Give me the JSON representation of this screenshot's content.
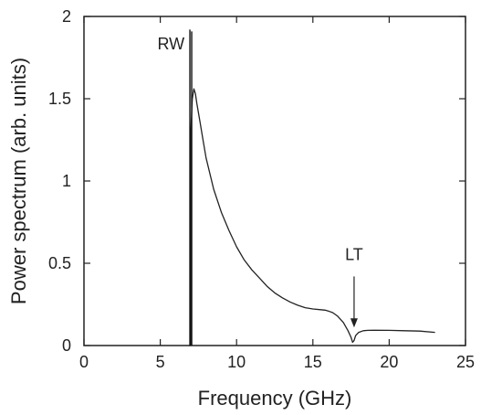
{
  "chart_data": {
    "type": "line",
    "title": "",
    "xlabel": "Frequency (GHz)",
    "ylabel": "Power spectrum (arb. units)",
    "xlim": [
      0,
      25
    ],
    "ylim": [
      0,
      2
    ],
    "x_ticks": [
      0,
      5,
      10,
      15,
      20,
      25
    ],
    "y_ticks": [
      0,
      0.5,
      1,
      1.5,
      2
    ],
    "y_tick_labels": [
      "0",
      "0.5",
      "1",
      "1.5",
      "2"
    ],
    "grid": false,
    "legend": "none",
    "series": [
      {
        "x": [
          6.9,
          7.0,
          7.0,
          7.05,
          7.1,
          7.2,
          7.3,
          7.4,
          7.6,
          7.8,
          8.0,
          8.5,
          9.0,
          9.5,
          10.0,
          10.5,
          11.0,
          11.5,
          12.0,
          12.5,
          13.0,
          13.5,
          14.0,
          14.5,
          15.0,
          15.5,
          15.8,
          16.0,
          16.3,
          16.6,
          17.0,
          17.3,
          17.5,
          17.6,
          17.7,
          17.8,
          18.0,
          18.3,
          18.6,
          19.0,
          20.0,
          21.0,
          22.0,
          23.0
        ],
        "y": [
          0.0,
          0.0,
          1.3,
          1.4,
          1.5,
          1.56,
          1.53,
          1.47,
          1.36,
          1.25,
          1.14,
          0.95,
          0.81,
          0.7,
          0.6,
          0.52,
          0.46,
          0.41,
          0.36,
          0.32,
          0.29,
          0.265,
          0.245,
          0.23,
          0.222,
          0.218,
          0.215,
          0.21,
          0.2,
          0.18,
          0.14,
          0.09,
          0.05,
          0.02,
          0.03,
          0.06,
          0.08,
          0.09,
          0.092,
          0.093,
          0.092,
          0.09,
          0.088,
          0.08
        ]
      }
    ],
    "spikes": [
      {
        "x": 7.0,
        "y": 1.92
      }
    ],
    "annotations": [
      {
        "text": "RW",
        "x": 5.7,
        "y": 1.8
      },
      {
        "text": "LT",
        "x": 17.7,
        "y": 0.52,
        "arrow_from_y": 0.42,
        "arrow_to_y": 0.11
      }
    ]
  }
}
